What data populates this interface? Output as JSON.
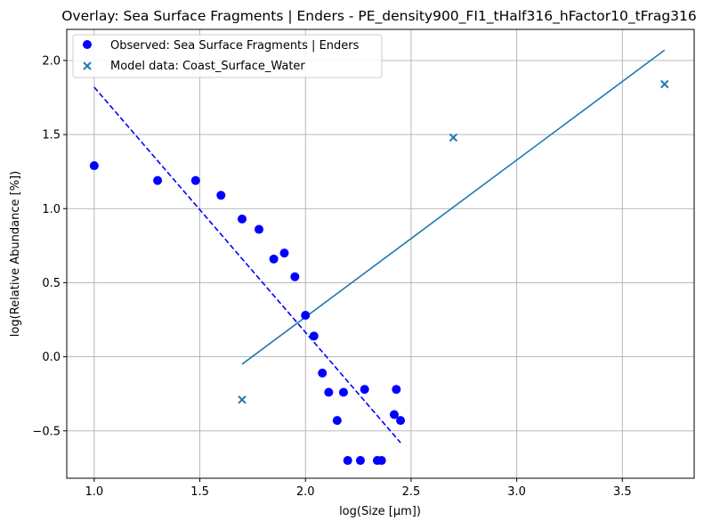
{
  "chart_data": {
    "type": "scatter",
    "title": "Overlay: Sea Surface Fragments | Enders - PE_density900_FI1_tHalf316_hFactor10_tFrag316",
    "xlabel": "log(Size [µm])",
    "ylabel": "log(Relative Abundance [%])",
    "xlim": [
      0.87,
      3.84
    ],
    "ylim": [
      -0.82,
      2.21
    ],
    "xticks": [
      1.0,
      1.5,
      2.0,
      2.5,
      3.0,
      3.5
    ],
    "xtick_labels": [
      "1.0",
      "1.5",
      "2.0",
      "2.5",
      "3.0",
      "3.5"
    ],
    "yticks": [
      -0.5,
      0.0,
      0.5,
      1.0,
      1.5,
      2.0
    ],
    "ytick_labels": [
      "−0.5",
      "0.0",
      "0.5",
      "1.0",
      "1.5",
      "2.0"
    ],
    "grid": true,
    "legend_position": "top-left",
    "series": [
      {
        "name": "Observed: Sea Surface Fragments | Enders",
        "marker": "circle",
        "color": "#0000ff",
        "x": [
          1.0,
          1.3,
          1.48,
          1.6,
          1.7,
          1.78,
          1.85,
          1.9,
          1.95,
          2.0,
          2.04,
          2.08,
          2.11,
          2.15,
          2.18,
          2.2,
          2.26,
          2.28,
          2.34,
          2.36,
          2.42,
          2.43,
          2.45
        ],
        "y": [
          1.29,
          1.19,
          1.19,
          1.09,
          0.93,
          0.86,
          0.66,
          0.7,
          0.54,
          0.28,
          0.14,
          -0.11,
          -0.24,
          -0.43,
          -0.24,
          -0.7,
          -0.7,
          -0.22,
          -0.7,
          -0.7,
          -0.39,
          -0.22,
          -0.43
        ]
      },
      {
        "name": "Model data: Coast_Surface_Water",
        "marker": "x",
        "color": "#1f77b4",
        "x": [
          1.7,
          2.7,
          3.7
        ],
        "y": [
          -0.29,
          1.48,
          1.84
        ]
      }
    ],
    "lines": [
      {
        "style": "dashed",
        "color": "#0000ff",
        "x": [
          1.0,
          2.45
        ],
        "y": [
          1.82,
          -0.58
        ]
      },
      {
        "style": "solid",
        "color": "#1f77b4",
        "x": [
          1.7,
          3.7
        ],
        "y": [
          -0.05,
          2.07
        ]
      }
    ]
  }
}
